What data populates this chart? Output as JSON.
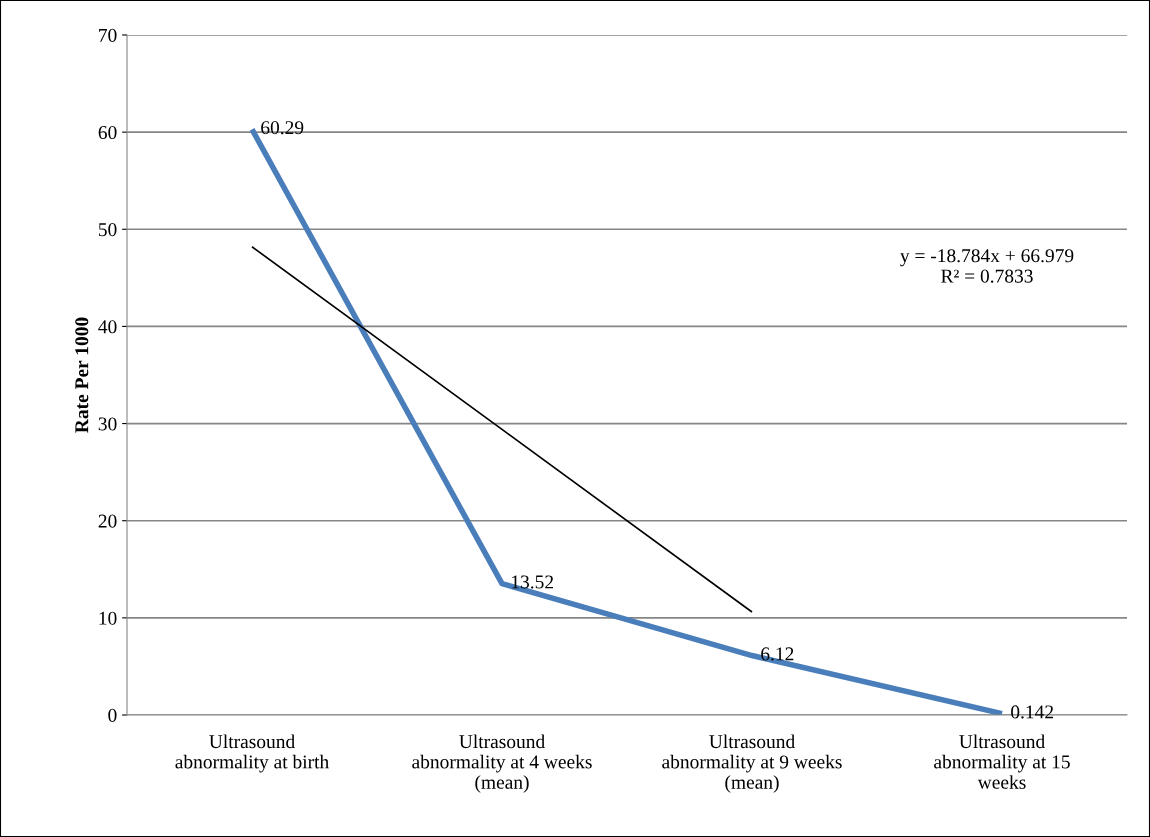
{
  "chart_data": {
    "type": "line",
    "ylabel": "Rate Per 1000",
    "categories": [
      "Ultrasound\nabnormality at birth",
      "Ultrasound\nabnormality at 4 weeks\n(mean)",
      "Ultrasound\nabnormality at 9 weeks\n(mean)",
      "Ultrasound\nabnormality at 15\nweeks"
    ],
    "series": [
      {
        "color": "#4a7ebb",
        "values": [
          60.29,
          13.52,
          6.12,
          0.142
        ],
        "data_labels": true
      },
      {
        "type": "line",
        "color": "#000000",
        "values": [
          48.2,
          29.4,
          10.6,
          null
        ]
      }
    ],
    "annotations": [
      "y = -18.784x + 66.979\nR² = 0.7833"
    ],
    "ylim": [
      0,
      70
    ],
    "yticks": [
      0,
      10,
      20,
      30,
      40,
      50,
      60,
      70
    ],
    "grid": "y",
    "marker": "none",
    "line_style": "solid"
  }
}
